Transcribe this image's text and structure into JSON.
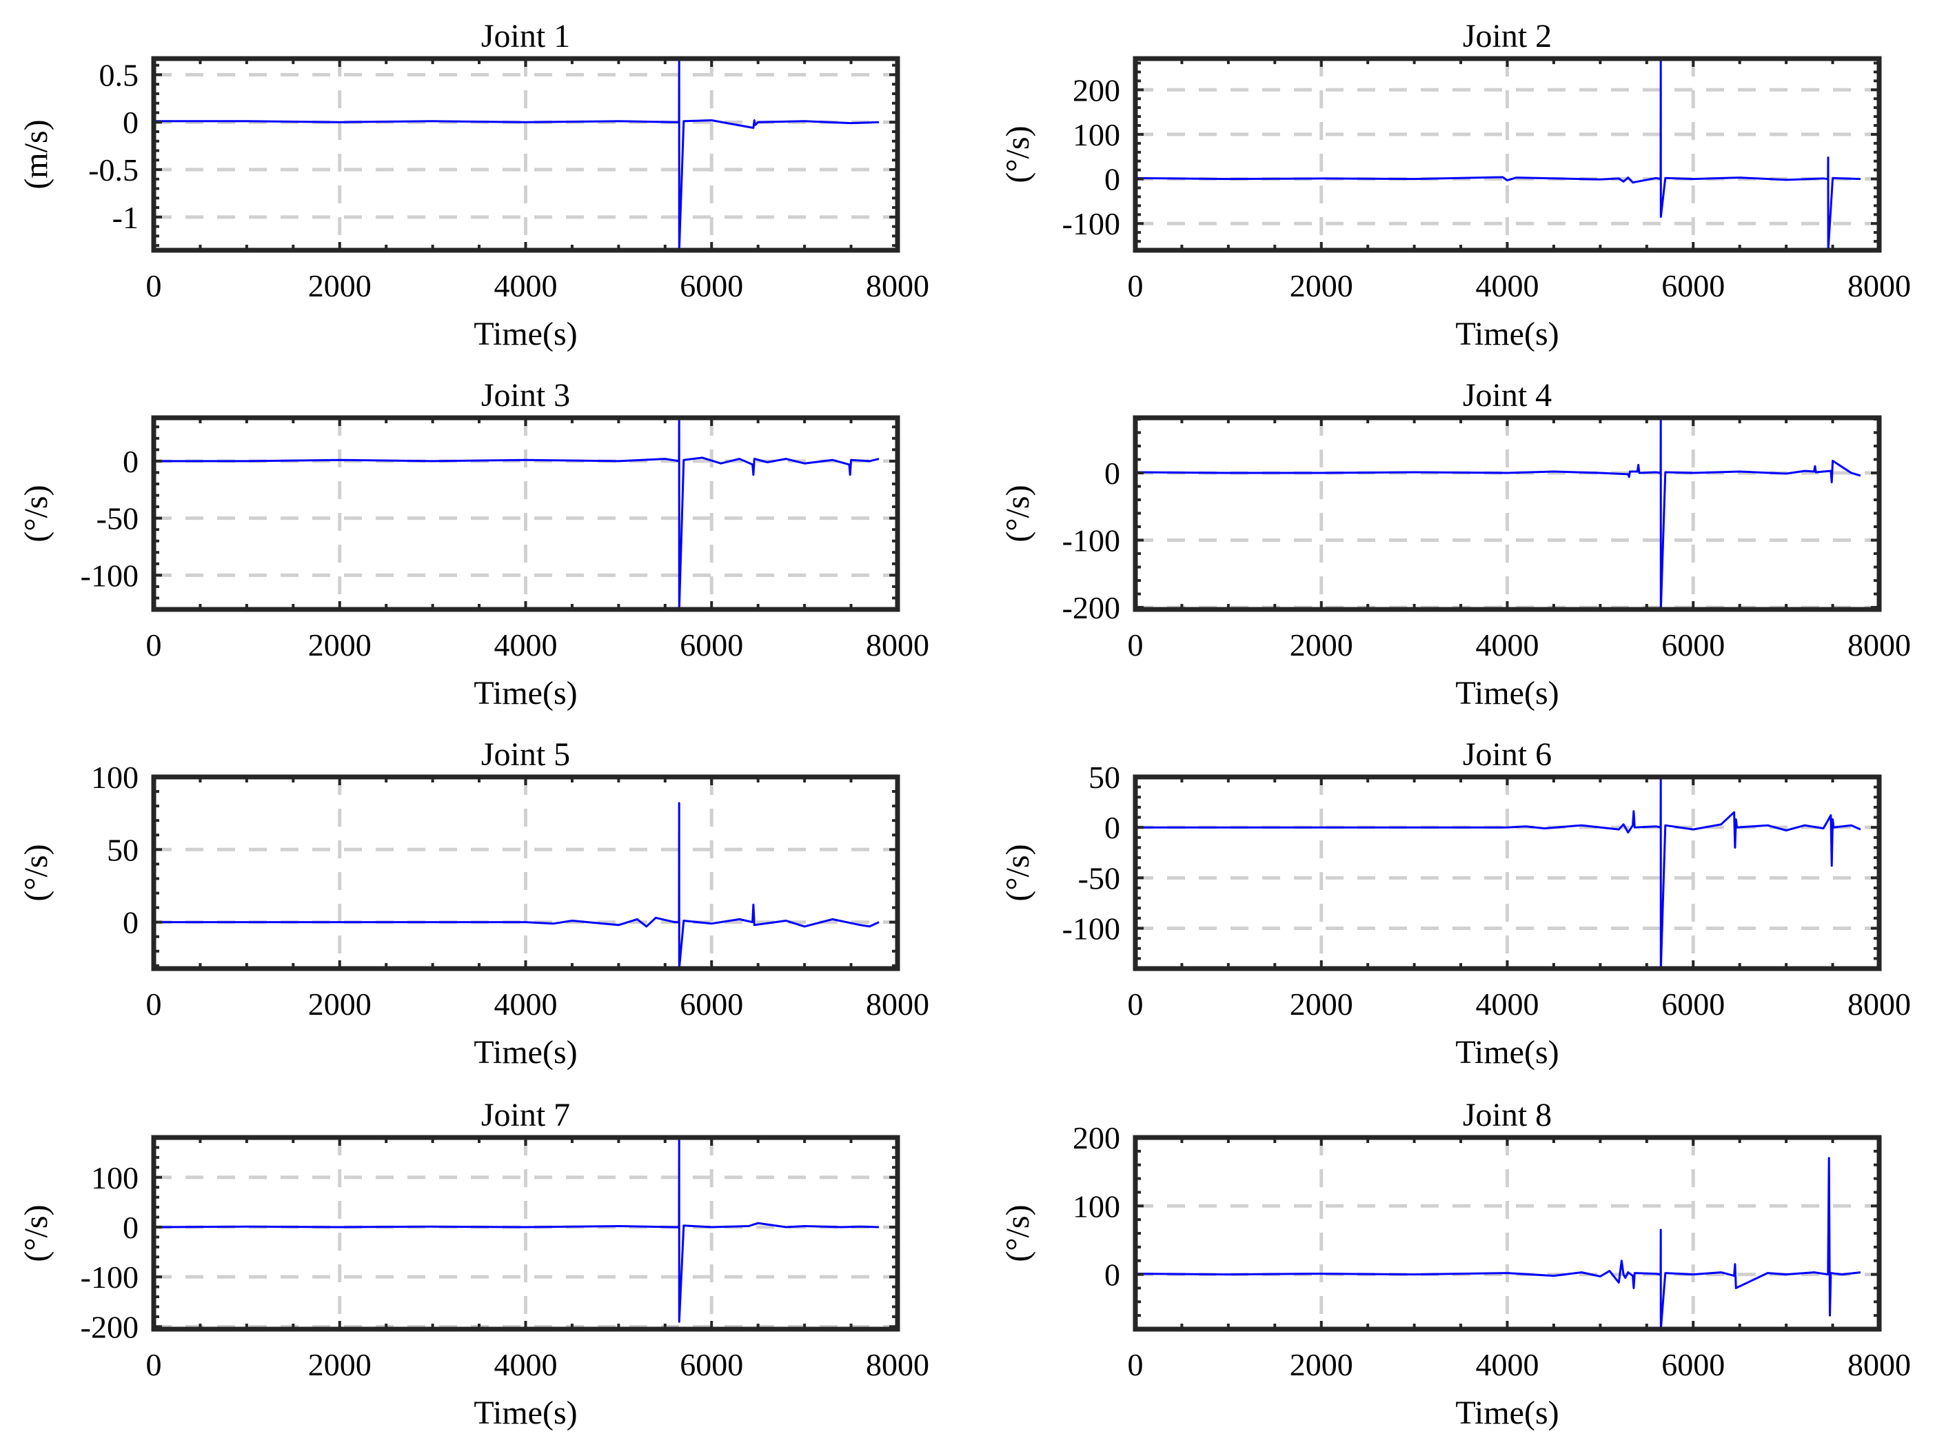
{
  "figure": {
    "grid": true
  },
  "chart_data": [
    {
      "type": "line",
      "title": "Joint 1",
      "xlabel": "Time(s)",
      "ylabel": "(m/s)",
      "xlim": [
        0,
        8000
      ],
      "ylim": [
        -1.35,
        0.67
      ],
      "xticks": [
        0,
        2000,
        4000,
        6000,
        8000
      ],
      "xticklabels": [
        "0",
        "2000",
        "4000",
        "6000",
        "8000"
      ],
      "yticks": [
        0.5,
        0,
        -0.5,
        -1
      ],
      "yticklabels": [
        "0.5",
        "0",
        "-0.5",
        "-1"
      ],
      "series": [
        {
          "name": "Joint 1",
          "color": "#0000ff",
          "x": [
            0,
            1000,
            2000,
            3000,
            4000,
            5000,
            5600,
            5650,
            5651,
            5652,
            5700,
            6000,
            6450,
            6460,
            6470,
            6500,
            7000,
            7500,
            7800
          ],
          "y": [
            0.01,
            0.01,
            0.0,
            0.01,
            0.0,
            0.01,
            0.0,
            0.0,
            0.67,
            -1.35,
            0.01,
            0.02,
            -0.06,
            0.02,
            -0.03,
            0.0,
            0.01,
            -0.01,
            0.0
          ]
        }
      ]
    },
    {
      "type": "line",
      "title": "Joint 2",
      "xlabel": "Time(s)",
      "ylabel": "(°/s)",
      "xlim": [
        0,
        8000
      ],
      "ylim": [
        -160,
        270
      ],
      "xticks": [
        0,
        2000,
        4000,
        6000,
        8000
      ],
      "xticklabels": [
        "0",
        "2000",
        "4000",
        "6000",
        "8000"
      ],
      "yticks": [
        200,
        100,
        0,
        -100
      ],
      "yticklabels": [
        "200",
        "100",
        "0",
        "-100"
      ],
      "series": [
        {
          "name": "Joint 2",
          "color": "#0000ff",
          "x": [
            0,
            1000,
            2000,
            3000,
            3950,
            4000,
            4100,
            5000,
            5200,
            5250,
            5300,
            5350,
            5600,
            5650,
            5651,
            5652,
            5700,
            6000,
            6500,
            7000,
            7400,
            7450,
            7451,
            7452,
            7500,
            7800
          ],
          "y": [
            2,
            0,
            1,
            0,
            4,
            -3,
            3,
            -1,
            1,
            -6,
            3,
            -8,
            2,
            0,
            270,
            -85,
            2,
            0,
            3,
            -2,
            1,
            0,
            48,
            -160,
            2,
            0
          ]
        }
      ]
    },
    {
      "type": "line",
      "title": "Joint 3",
      "xlabel": "Time(s)",
      "ylabel": "(°/s)",
      "xlim": [
        0,
        8000
      ],
      "ylim": [
        -130,
        38
      ],
      "xticks": [
        0,
        2000,
        4000,
        6000,
        8000
      ],
      "xticklabels": [
        "0",
        "2000",
        "4000",
        "6000",
        "8000"
      ],
      "yticks": [
        0,
        -50,
        -100
      ],
      "yticklabels": [
        "0",
        "-50",
        "-100"
      ],
      "series": [
        {
          "name": "Joint 3",
          "color": "#0000ff",
          "x": [
            0,
            1000,
            2000,
            3000,
            4000,
            5000,
            5500,
            5650,
            5651,
            5652,
            5700,
            5900,
            6100,
            6300,
            6440,
            6450,
            6460,
            6600,
            6800,
            7000,
            7300,
            7480,
            7490,
            7500,
            7700,
            7800
          ],
          "y": [
            0,
            0,
            1,
            0,
            1,
            0,
            2,
            0,
            38,
            -130,
            1,
            3,
            -2,
            2,
            -3,
            -12,
            2,
            -1,
            2,
            -2,
            1,
            -3,
            -12,
            1,
            0,
            2
          ]
        }
      ]
    },
    {
      "type": "line",
      "title": "Joint 4",
      "xlabel": "Time(s)",
      "ylabel": "(°/s)",
      "xlim": [
        0,
        8000
      ],
      "ylim": [
        -203,
        82
      ],
      "xticks": [
        0,
        2000,
        4000,
        6000,
        8000
      ],
      "xticklabels": [
        "0",
        "2000",
        "4000",
        "6000",
        "8000"
      ],
      "yticks": [
        0,
        -100,
        -200
      ],
      "yticklabels": [
        "0",
        "-100",
        "-200"
      ],
      "series": [
        {
          "name": "Joint 4",
          "color": "#0000ff",
          "x": [
            0,
            1000,
            2000,
            3000,
            4000,
            4500,
            5000,
            5300,
            5310,
            5320,
            5400,
            5410,
            5420,
            5600,
            5650,
            5651,
            5652,
            5700,
            6000,
            6500,
            7000,
            7200,
            7300,
            7310,
            7320,
            7400,
            7480,
            7490,
            7500,
            7700,
            7800
          ],
          "y": [
            1,
            0,
            0,
            1,
            0,
            2,
            0,
            -2,
            -6,
            2,
            2,
            12,
            0,
            1,
            0,
            82,
            -203,
            1,
            0,
            2,
            -1,
            3,
            2,
            10,
            1,
            2,
            3,
            -14,
            18,
            0,
            -4
          ]
        }
      ]
    },
    {
      "type": "line",
      "title": "Joint 5",
      "xlabel": "Time(s)",
      "ylabel": "(°/s)",
      "xlim": [
        0,
        8000
      ],
      "ylim": [
        -32,
        100
      ],
      "xticks": [
        0,
        2000,
        4000,
        6000,
        8000
      ],
      "xticklabels": [
        "0",
        "2000",
        "4000",
        "6000",
        "8000"
      ],
      "yticks": [
        100,
        50,
        0
      ],
      "yticklabels": [
        "100",
        "50",
        "0"
      ],
      "series": [
        {
          "name": "Joint 5",
          "color": "#0000ff",
          "x": [
            0,
            1000,
            2000,
            3000,
            4000,
            4300,
            4500,
            5000,
            5200,
            5300,
            5400,
            5600,
            5650,
            5651,
            5652,
            5700,
            6000,
            6300,
            6440,
            6450,
            6460,
            6800,
            7000,
            7300,
            7600,
            7700,
            7800
          ],
          "y": [
            0,
            0,
            0,
            0,
            0,
            -1,
            1,
            -2,
            2,
            -3,
            3,
            0,
            0,
            82,
            -32,
            1,
            -1,
            2,
            0,
            12,
            -2,
            1,
            -3,
            2,
            -2,
            -3,
            0
          ]
        }
      ]
    },
    {
      "type": "line",
      "title": "Joint 6",
      "xlabel": "Time(s)",
      "ylabel": "(°/s)",
      "xlim": [
        0,
        8000
      ],
      "ylim": [
        -140,
        50
      ],
      "xticks": [
        0,
        2000,
        4000,
        6000,
        8000
      ],
      "xticklabels": [
        "0",
        "2000",
        "4000",
        "6000",
        "8000"
      ],
      "yticks": [
        50,
        0,
        -50,
        -100
      ],
      "yticklabels": [
        "50",
        "0",
        "-50",
        "-100"
      ],
      "series": [
        {
          "name": "Joint 6",
          "color": "#0000ff",
          "x": [
            0,
            1000,
            2000,
            3000,
            4000,
            4200,
            4400,
            4800,
            5200,
            5250,
            5300,
            5350,
            5360,
            5370,
            5600,
            5650,
            5651,
            5652,
            5700,
            6000,
            6300,
            6440,
            6450,
            6460,
            6470,
            6800,
            7000,
            7200,
            7400,
            7480,
            7490,
            7500,
            7510,
            7700,
            7800
          ],
          "y": [
            0,
            0,
            0,
            0,
            0,
            1,
            -1,
            2,
            -2,
            3,
            -5,
            2,
            16,
            0,
            1,
            0,
            50,
            -140,
            2,
            -2,
            3,
            15,
            -20,
            8,
            0,
            2,
            -3,
            2,
            -1,
            12,
            -38,
            8,
            0,
            2,
            -2
          ]
        }
      ]
    },
    {
      "type": "line",
      "title": "Joint 7",
      "xlabel": "Time(s)",
      "ylabel": "(°/s)",
      "xlim": [
        0,
        8000
      ],
      "ylim": [
        -205,
        180
      ],
      "xticks": [
        0,
        2000,
        4000,
        6000,
        8000
      ],
      "xticklabels": [
        "0",
        "2000",
        "4000",
        "6000",
        "8000"
      ],
      "yticks": [
        100,
        0,
        -100,
        -200
      ],
      "yticklabels": [
        "100",
        "0",
        "-100",
        "-200"
      ],
      "series": [
        {
          "name": "Joint 7",
          "color": "#0000ff",
          "x": [
            0,
            1000,
            2000,
            3000,
            4000,
            5000,
            5600,
            5650,
            5651,
            5652,
            5700,
            6000,
            6400,
            6500,
            6800,
            7000,
            7400,
            7600,
            7800
          ],
          "y": [
            0,
            1,
            0,
            1,
            0,
            2,
            0,
            0,
            180,
            -190,
            3,
            0,
            2,
            8,
            0,
            2,
            0,
            1,
            0
          ]
        }
      ]
    },
    {
      "type": "line",
      "title": "Joint 8",
      "xlabel": "Time(s)",
      "ylabel": "(°/s)",
      "xlim": [
        0,
        8000
      ],
      "ylim": [
        -80,
        200
      ],
      "xticks": [
        0,
        2000,
        4000,
        6000,
        8000
      ],
      "xticklabels": [
        "0",
        "2000",
        "4000",
        "6000",
        "8000"
      ],
      "yticks": [
        200,
        100,
        0
      ],
      "yticklabels": [
        "200",
        "100",
        "0"
      ],
      "series": [
        {
          "name": "Joint 8",
          "color": "#0000ff",
          "x": [
            0,
            1000,
            2000,
            3000,
            4000,
            4500,
            4800,
            5000,
            5100,
            5200,
            5230,
            5250,
            5270,
            5300,
            5350,
            5360,
            5370,
            5600,
            5650,
            5651,
            5652,
            5700,
            6000,
            6300,
            6440,
            6450,
            6460,
            6800,
            7000,
            7300,
            7450,
            7460,
            7470,
            7480,
            7600,
            7800
          ],
          "y": [
            1,
            0,
            1,
            0,
            2,
            -2,
            3,
            -3,
            5,
            -12,
            20,
            0,
            -5,
            3,
            -2,
            -20,
            2,
            1,
            0,
            65,
            -80,
            2,
            0,
            3,
            -2,
            15,
            -20,
            2,
            0,
            3,
            0,
            170,
            -60,
            2,
            0,
            3
          ]
        }
      ]
    }
  ]
}
